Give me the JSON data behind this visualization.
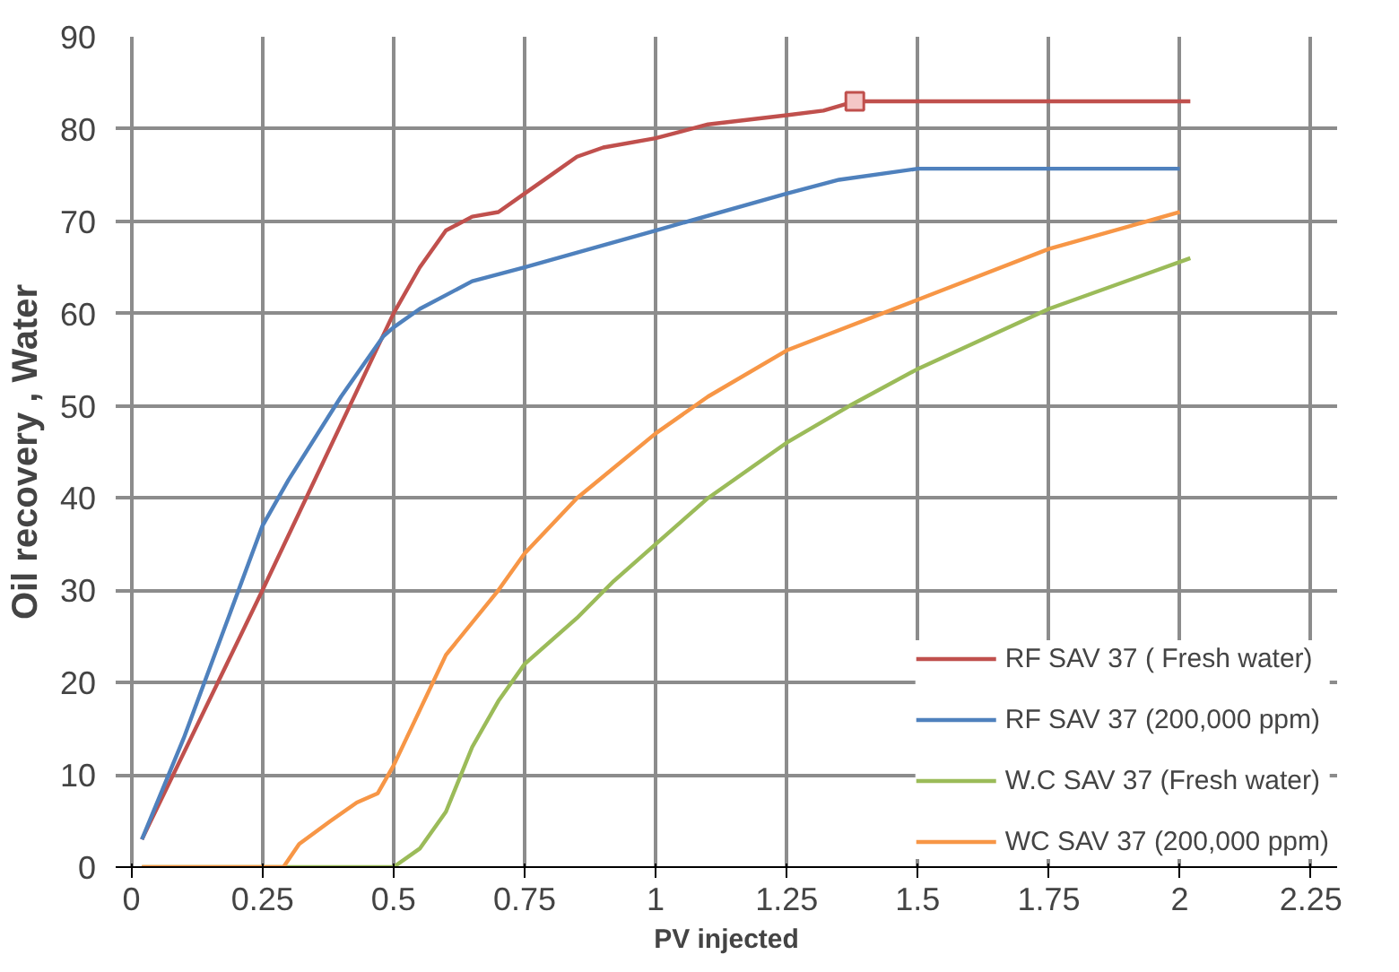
{
  "chart_data": {
    "type": "line",
    "xlabel": "PV injected",
    "ylabel": "Oil recovery , Water",
    "xlim": [
      -0.03,
      2.3
    ],
    "ylim": [
      0,
      90
    ],
    "xticks": [
      0,
      0.25,
      0.5,
      0.75,
      1,
      1.25,
      1.5,
      1.75,
      2,
      2.25
    ],
    "yticks": [
      0,
      10,
      20,
      30,
      40,
      50,
      60,
      70,
      80,
      90
    ],
    "grid": true,
    "legend": "bottom right",
    "series": [
      {
        "name": "RF SAV 37 ( Fresh water)",
        "color": "#c0504d",
        "x": [
          0.02,
          0.25,
          0.45,
          0.5,
          0.55,
          0.6,
          0.65,
          0.7,
          0.75,
          0.8,
          0.85,
          0.9,
          1.0,
          1.1,
          1.25,
          1.32,
          1.38,
          1.5,
          2.02
        ],
        "values": [
          3,
          30,
          54,
          60,
          65,
          69,
          70.5,
          71,
          73,
          75,
          77,
          78,
          79,
          80.5,
          81.5,
          82,
          83,
          83,
          83
        ]
      },
      {
        "name": "RF SAV 37 (200,000 ppm)",
        "color": "#4f81bd",
        "x": [
          0.02,
          0.1,
          0.25,
          0.3,
          0.4,
          0.48,
          0.5,
          0.55,
          0.6,
          0.65,
          0.75,
          1.0,
          1.25,
          1.35,
          1.5,
          2.0
        ],
        "values": [
          3,
          14,
          37,
          42,
          51,
          57.5,
          58.5,
          60.5,
          62,
          63.5,
          65,
          69,
          73,
          74.5,
          75.7,
          75.7
        ]
      },
      {
        "name": "W.C SAV 37 (Fresh water)",
        "color": "#9bbb59",
        "x": [
          0.02,
          0.5,
          0.55,
          0.6,
          0.65,
          0.7,
          0.75,
          0.85,
          0.92,
          1.0,
          1.1,
          1.25,
          1.37,
          1.5,
          1.75,
          2.02
        ],
        "values": [
          0,
          0,
          2,
          6,
          13,
          18,
          22,
          27,
          31,
          35,
          40,
          46,
          50,
          54,
          60.5,
          66
        ]
      },
      {
        "name": "WC SAV 37 (200,000 ppm)",
        "color": "#f79646",
        "x": [
          0.02,
          0.29,
          0.32,
          0.38,
          0.43,
          0.47,
          0.5,
          0.55,
          0.6,
          0.7,
          0.75,
          0.85,
          1.0,
          1.1,
          1.25,
          1.5,
          1.75,
          2.0
        ],
        "values": [
          0,
          0,
          2.5,
          5,
          7,
          8,
          11,
          17,
          23,
          30,
          34,
          40,
          47,
          51,
          56,
          61.5,
          67,
          71
        ]
      },
      {
        "type": "scatter",
        "marker": "square",
        "color": "#c0504d",
        "x": [
          1.38
        ],
        "values": [
          83
        ]
      }
    ]
  }
}
